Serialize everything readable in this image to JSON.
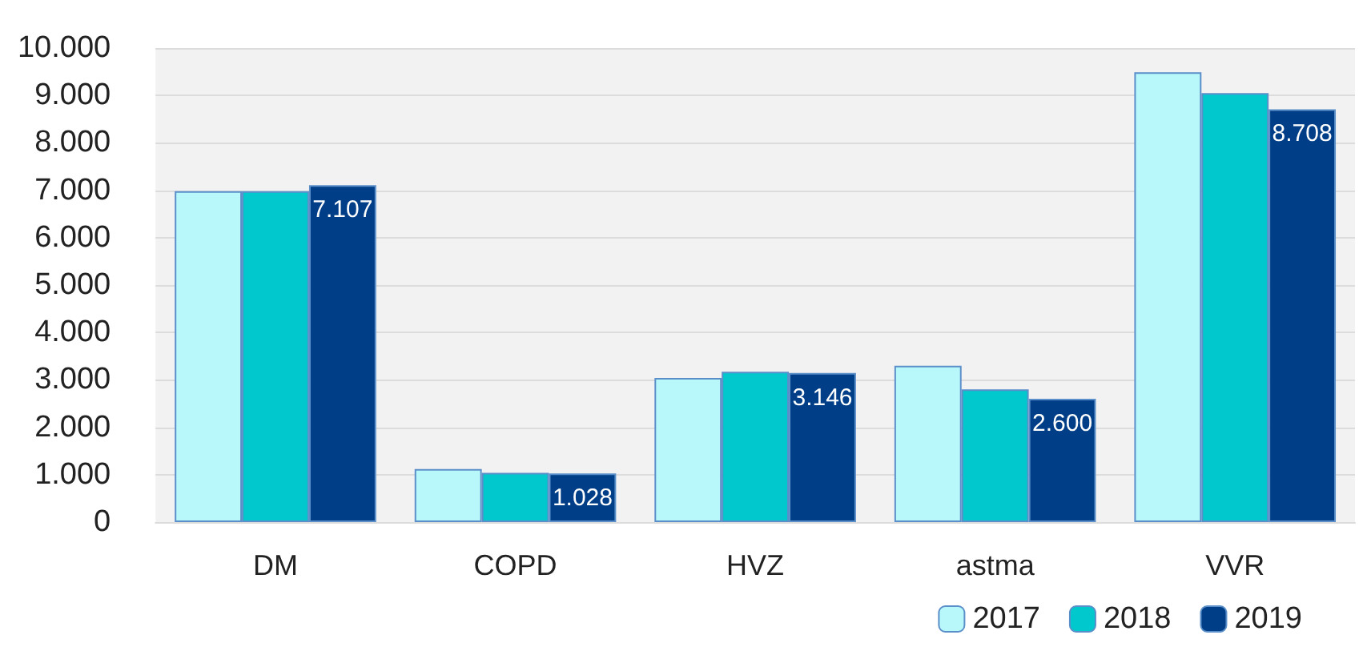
{
  "chart_data": {
    "type": "bar",
    "categories": [
      "DM",
      "COPD",
      "HVZ",
      "astma",
      "VVR"
    ],
    "series": [
      {
        "name": "2017",
        "color": "#b8f8fa",
        "values": [
          6980,
          1120,
          3040,
          3300,
          9490
        ]
      },
      {
        "name": "2018",
        "color": "#00c8cc",
        "values": [
          6980,
          1040,
          3170,
          2800,
          9050
        ]
      },
      {
        "name": "2019",
        "color": "#003f87",
        "values": [
          7107,
          1028,
          3146,
          2600,
          8708
        ],
        "value_labels": [
          "7.107",
          "1.028",
          "3.146",
          "2.600",
          "8.708"
        ]
      }
    ],
    "ylim": [
      0,
      10000
    ],
    "yticks": [
      0,
      {
        "value": 1000,
        "label": "1.000"
      },
      {
        "value": 2000,
        "label": "2.000"
      },
      {
        "value": 3000,
        "label": "3.000"
      },
      {
        "value": 4000,
        "label": "4.000"
      },
      {
        "value": 5000,
        "label": "5.000"
      },
      {
        "value": 6000,
        "label": "6.000"
      },
      {
        "value": 7000,
        "label": "7.000"
      },
      {
        "value": 8000,
        "label": "8.000"
      },
      {
        "value": 9000,
        "label": "9.000"
      },
      {
        "value": 10000,
        "label": "10.000"
      }
    ],
    "grid": "y",
    "legend": "bottom right"
  }
}
